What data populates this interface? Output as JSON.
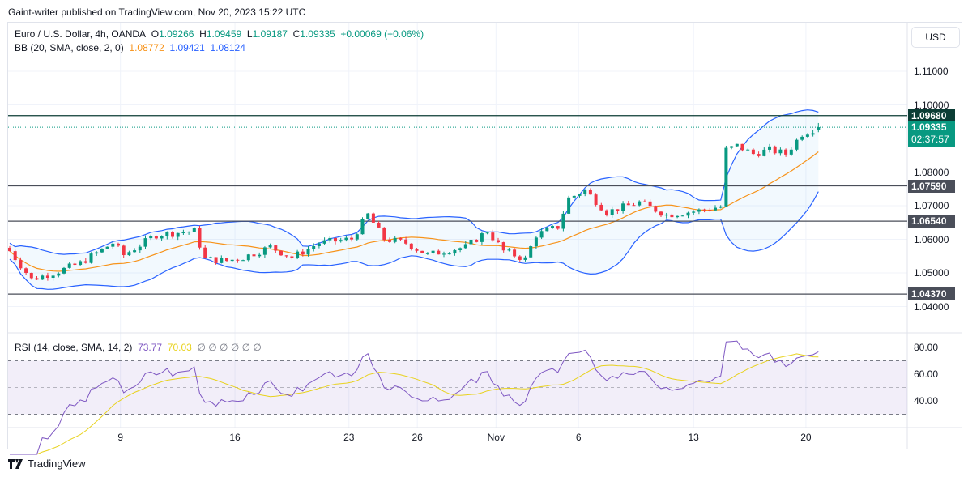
{
  "publish_line": "Gaint-writer published on TradingView.com, Nov 20, 2023 15:22 UTC",
  "legend": {
    "symbol": "Euro / U.S. Dollar, 4h, OANDA",
    "o_label": "O",
    "o": "1.09266",
    "h_label": "H",
    "h": "1.09459",
    "l_label": "L",
    "l": "1.09187",
    "c_label": "C",
    "c": "1.09335",
    "change": "+0.00069 (+0.06%)",
    "bb_label": "BB (20, SMA, close, 2, 0)",
    "bb_basis": "1.08772",
    "bb_upper": "1.09421",
    "bb_lower": "1.08124",
    "rsi_label": "RSI (14, close, SMA, 14, 2)",
    "rsi_value": "73.77",
    "rsi_ma": "70.03",
    "rsi_empty": "∅ ∅ ∅ ∅ ∅ ∅"
  },
  "currency_button": "USD",
  "colors": {
    "up": "#089981",
    "down": "#f23645",
    "bb_band": "#2962ff",
    "bb_basis": "#f7931a",
    "rsi": "#7e57c2",
    "rsi_ma": "#e8d21d",
    "level": "#4a4e59",
    "resistance": "#0b3d35"
  },
  "chart_data": {
    "type": "candlestick",
    "price_axis": [
      "1.11000",
      "1.10000",
      "1.08000",
      "1.07000",
      "1.06000",
      "1.05000",
      "1.04000"
    ],
    "price_range": [
      1.0375,
      1.1175
    ],
    "levels": [
      {
        "value": "1.09680",
        "kind": "resistance"
      },
      {
        "value": "1.07590",
        "kind": "level"
      },
      {
        "value": "1.06540",
        "kind": "level"
      },
      {
        "value": "1.04370",
        "kind": "level"
      }
    ],
    "current_price": "1.09335",
    "countdown": "02:37:57",
    "candle_count": 150,
    "close_path": [
      [
        0,
        1.0565
      ],
      [
        4,
        1.0481
      ],
      [
        9,
        1.0505
      ],
      [
        13,
        1.0529
      ],
      [
        19,
        1.0589
      ],
      [
        21,
        1.0553
      ],
      [
        27,
        1.0613
      ],
      [
        34,
        1.0625
      ],
      [
        36,
        1.0541
      ],
      [
        40,
        1.0536
      ],
      [
        43,
        1.0546
      ],
      [
        48,
        1.0577
      ],
      [
        52,
        1.0546
      ],
      [
        57,
        1.0589
      ],
      [
        63,
        1.0601
      ],
      [
        66,
        1.0673
      ],
      [
        69,
        1.0601
      ],
      [
        73,
        1.0589
      ],
      [
        77,
        1.0553
      ],
      [
        80,
        1.0565
      ],
      [
        84,
        1.0577
      ],
      [
        88,
        1.0625
      ],
      [
        91,
        1.0565
      ],
      [
        95,
        1.0541
      ],
      [
        97,
        1.0613
      ],
      [
        101,
        1.0637
      ],
      [
        103,
        1.0722
      ],
      [
        106,
        1.0746
      ],
      [
        110,
        1.0681
      ],
      [
        116,
        1.071
      ],
      [
        121,
        1.0673
      ],
      [
        127,
        1.0685
      ],
      [
        131,
        1.0698
      ],
      [
        132,
        1.0866
      ],
      [
        134,
        1.0878
      ],
      [
        137,
        1.0854
      ],
      [
        140,
        1.0866
      ],
      [
        143,
        1.0854
      ],
      [
        146,
        1.0914
      ],
      [
        149,
        1.0933
      ]
    ],
    "rsi_axis": [
      "80.00",
      "60.00",
      "40.00"
    ],
    "rsi_range": [
      25,
      88
    ],
    "rsi_bands": [
      70,
      30
    ],
    "time_axis": [
      {
        "label": "9",
        "index": 20.4
      },
      {
        "label": "16",
        "index": 41.5
      },
      {
        "label": "23",
        "index": 62.5
      },
      {
        "label": "26",
        "index": 75.1
      },
      {
        "label": "Nov",
        "index": 89.6
      },
      {
        "label": "6",
        "index": 104.8
      },
      {
        "label": "13",
        "index": 126
      },
      {
        "label": "20",
        "index": 146.7
      }
    ]
  },
  "footer_brand": "TradingView"
}
